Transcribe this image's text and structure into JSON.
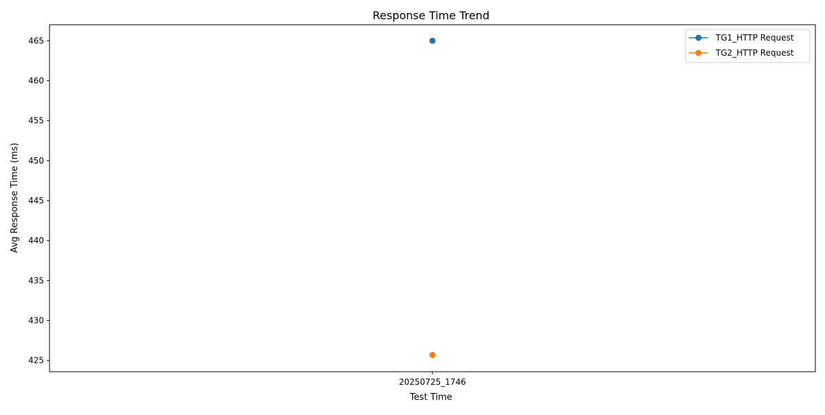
{
  "chart_data": {
    "type": "line",
    "title": "Response Time Trend",
    "xlabel": "Test Time",
    "ylabel": "Avg Response Time (ms)",
    "categories": [
      "20250725_1746"
    ],
    "yticks": [
      425,
      430,
      435,
      440,
      445,
      450,
      455,
      460,
      465
    ],
    "ylim": [
      423.6,
      467.0
    ],
    "grid": false,
    "legend_position": "top-right",
    "series": [
      {
        "name": "TG1_HTTP Request",
        "color": "#1f77b4",
        "values": [
          465.0
        ]
      },
      {
        "name": "TG2_HTTP Request",
        "color": "#ff7f0e",
        "values": [
          425.7
        ]
      }
    ]
  }
}
